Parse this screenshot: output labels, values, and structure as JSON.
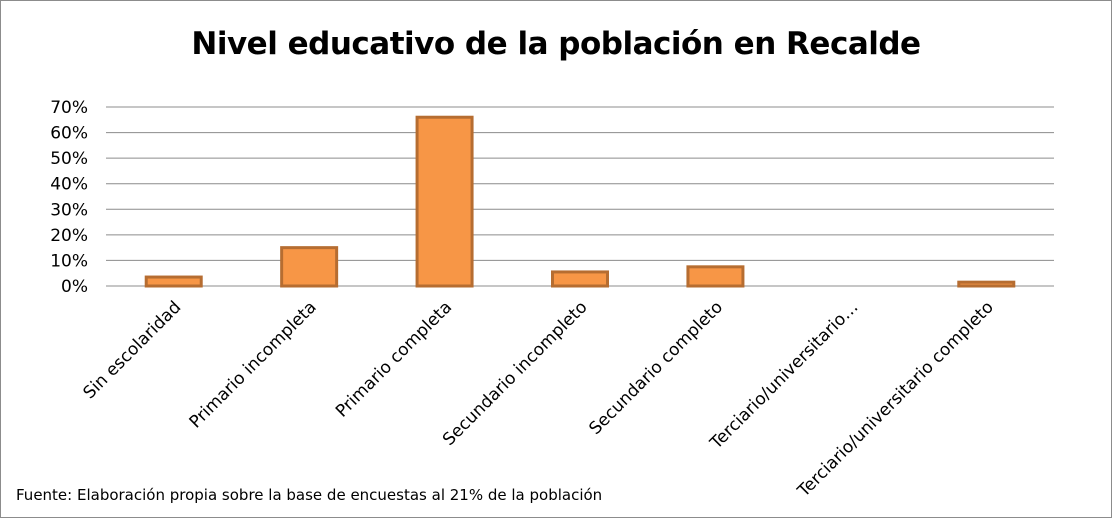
{
  "chart_data": {
    "type": "bar",
    "title": "Nivel educativo de la población en Recalde",
    "categories": [
      "Sin escolaridad",
      "Primario incompleta",
      "Primario completa",
      "Secundario incompleto",
      "Secundario completo",
      "Terciario/universitario…",
      "Terciario/universitario completo"
    ],
    "values": [
      3.5,
      15,
      66,
      5.5,
      7.5,
      0,
      1.5
    ],
    "ylim": [
      0,
      70
    ],
    "yticks": [
      "0%",
      "10%",
      "20%",
      "30%",
      "40%",
      "50%",
      "60%",
      "70%"
    ],
    "ytick_values": [
      0,
      10,
      20,
      30,
      40,
      50,
      60,
      70
    ],
    "grid": true,
    "colors": {
      "bar_fill": "#f79646",
      "bar_stroke": "#b66d31",
      "grid": "#8c8c8c"
    }
  },
  "footer": {
    "source": "Fuente:  Elaboración propia sobre la base de encuestas al 21%  de la población"
  }
}
